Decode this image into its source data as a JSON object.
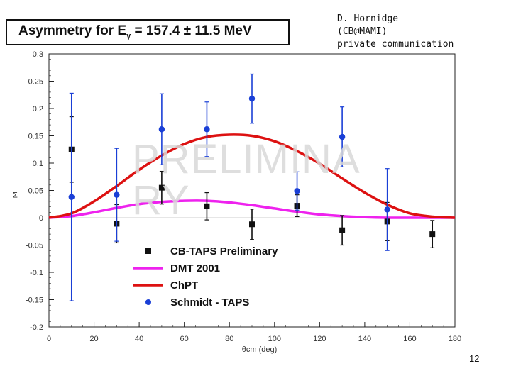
{
  "title": {
    "prefix": "Asymmetry for E",
    "subscript": "γ",
    "suffix": " = 157.4 ± 11.5 MeV"
  },
  "attribution": [
    "D. Hornidge",
    "(CB@MAMI)",
    "private communication"
  ],
  "watermark": "PRELIMINARY",
  "slide_number": "12",
  "colors": {
    "cbtaps": "#111111",
    "dmt": "#ee22ee",
    "chpt": "#dd1111",
    "schmidt": "#1a3fd6"
  },
  "chart_data": {
    "type": "scatter",
    "title": "Asymmetry for Eγ = 157.4 ± 11.5 MeV",
    "xlabel": "θcm (deg)",
    "ylabel": "Σ",
    "xlim": [
      0,
      180
    ],
    "ylim": [
      -0.2,
      0.3
    ],
    "xticks": [
      0,
      20,
      40,
      60,
      80,
      100,
      120,
      140,
      160,
      180
    ],
    "yticks": [
      -0.2,
      -0.15,
      -0.1,
      -0.05,
      0,
      0.05,
      0.1,
      0.15,
      0.2,
      0.25,
      0.3
    ],
    "series": [
      {
        "name": "CB-TAPS Preliminary",
        "kind": "points",
        "marker": "square",
        "x": [
          10,
          30,
          50,
          70,
          90,
          110,
          130,
          150,
          170
        ],
        "y": [
          0.125,
          -0.011,
          0.055,
          0.021,
          -0.012,
          0.022,
          -0.023,
          -0.007,
          -0.03
        ],
        "err": [
          0.06,
          0.035,
          0.03,
          0.025,
          0.028,
          0.02,
          0.027,
          0.035,
          0.025
        ]
      },
      {
        "name": "DMT 2001",
        "kind": "line",
        "x": [
          0,
          10,
          20,
          30,
          40,
          50,
          60,
          70,
          80,
          90,
          100,
          110,
          120,
          130,
          140,
          150,
          160,
          170,
          180
        ],
        "y": [
          0,
          0.003,
          0.01,
          0.018,
          0.025,
          0.029,
          0.031,
          0.031,
          0.028,
          0.023,
          0.017,
          0.011,
          0.006,
          0.003,
          0.001,
          0,
          0,
          0,
          0
        ]
      },
      {
        "name": "ChPT",
        "kind": "line",
        "x": [
          0,
          10,
          20,
          30,
          40,
          50,
          60,
          70,
          80,
          90,
          100,
          110,
          120,
          130,
          140,
          150,
          160,
          170,
          180
        ],
        "y": [
          0,
          0.008,
          0.03,
          0.058,
          0.088,
          0.114,
          0.135,
          0.148,
          0.152,
          0.15,
          0.14,
          0.122,
          0.099,
          0.072,
          0.046,
          0.024,
          0.008,
          0.002,
          0
        ]
      },
      {
        "name": "Schmidt - TAPS",
        "kind": "points",
        "marker": "circle",
        "x": [
          10,
          30,
          50,
          70,
          90,
          110,
          130,
          150
        ],
        "y": [
          0.038,
          0.042,
          0.162,
          0.162,
          0.218,
          0.049,
          0.148,
          0.015
        ],
        "err": [
          0.19,
          0.085,
          0.065,
          0.05,
          0.045,
          0.035,
          0.055,
          0.075
        ]
      }
    ]
  }
}
